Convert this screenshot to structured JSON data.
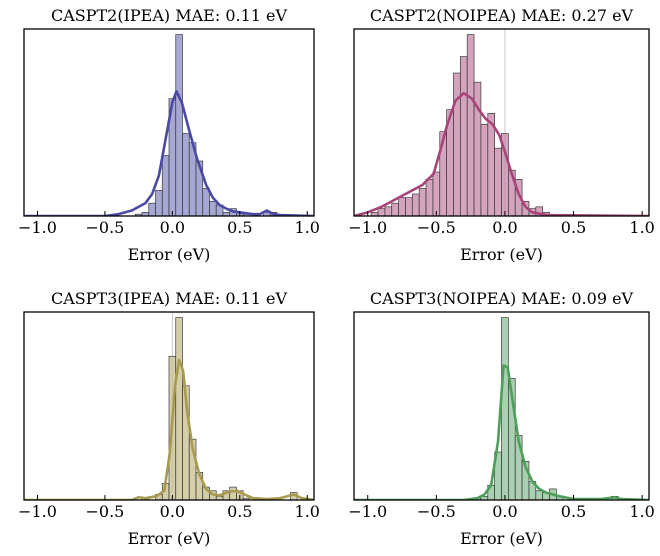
{
  "chart_data": [
    {
      "type": "histogram",
      "title": "CASPT2(IPEA) MAE: 0.11 eV",
      "xlabel": "Error (eV)",
      "xlim": [
        -1.1,
        1.05
      ],
      "xticks": [
        -1.0,
        -0.5,
        0.0,
        0.5,
        1.0
      ],
      "xtick_labels": [
        "−1.0",
        "−0.5",
        "0.0",
        "0.5",
        "1.0"
      ],
      "color": "#4a4aa6",
      "bins": [
        {
          "x": -0.25,
          "h": 0.01
        },
        {
          "x": -0.2,
          "h": 0.02
        },
        {
          "x": -0.15,
          "h": 0.07
        },
        {
          "x": -0.1,
          "h": 0.14
        },
        {
          "x": -0.05,
          "h": 0.33
        },
        {
          "x": 0.0,
          "h": 0.64
        },
        {
          "x": 0.05,
          "h": 0.99
        },
        {
          "x": 0.1,
          "h": 0.45
        },
        {
          "x": 0.15,
          "h": 0.4
        },
        {
          "x": 0.2,
          "h": 0.3
        },
        {
          "x": 0.25,
          "h": 0.15
        },
        {
          "x": 0.3,
          "h": 0.08
        },
        {
          "x": 0.35,
          "h": 0.06
        },
        {
          "x": 0.4,
          "h": 0.02
        },
        {
          "x": 0.45,
          "h": 0.04
        },
        {
          "x": 0.5,
          "h": 0.02
        },
        {
          "x": 0.55,
          "h": 0.01
        },
        {
          "x": 0.7,
          "h": 0.02
        },
        {
          "x": 0.75,
          "h": 0.02
        }
      ],
      "kde": [
        [
          -1.1,
          0
        ],
        [
          -0.5,
          0
        ],
        [
          -0.4,
          0.01
        ],
        [
          -0.3,
          0.03
        ],
        [
          -0.2,
          0.07
        ],
        [
          -0.15,
          0.12
        ],
        [
          -0.1,
          0.22
        ],
        [
          -0.05,
          0.42
        ],
        [
          0.0,
          0.62
        ],
        [
          0.03,
          0.68
        ],
        [
          0.07,
          0.62
        ],
        [
          0.12,
          0.48
        ],
        [
          0.18,
          0.32
        ],
        [
          0.25,
          0.17
        ],
        [
          0.3,
          0.1
        ],
        [
          0.35,
          0.06
        ],
        [
          0.4,
          0.04
        ],
        [
          0.45,
          0.025
        ],
        [
          0.5,
          0.02
        ],
        [
          0.55,
          0.015
        ],
        [
          0.6,
          0.01
        ],
        [
          0.65,
          0.01
        ],
        [
          0.7,
          0.03
        ],
        [
          0.75,
          0.01
        ],
        [
          0.8,
          0.005
        ],
        [
          1.05,
          0
        ]
      ],
      "zero_line": false
    },
    {
      "type": "histogram",
      "title": "CASPT2(NOIPEA) MAE: 0.27 eV",
      "xlabel": "Error (eV)",
      "xlim": [
        -1.1,
        1.05
      ],
      "xticks": [
        -1.0,
        -0.5,
        0.0,
        0.5,
        1.0
      ],
      "xtick_labels": [
        "−1.0",
        "−0.5",
        "0.0",
        "0.5",
        "1.0"
      ],
      "color": "#a8447a",
      "bins": [
        {
          "x": -0.95,
          "h": 0.02
        },
        {
          "x": -0.9,
          "h": 0.04
        },
        {
          "x": -0.85,
          "h": 0.05
        },
        {
          "x": -0.8,
          "h": 0.07
        },
        {
          "x": -0.75,
          "h": 0.1
        },
        {
          "x": -0.7,
          "h": 0.1
        },
        {
          "x": -0.65,
          "h": 0.12
        },
        {
          "x": -0.6,
          "h": 0.15
        },
        {
          "x": -0.55,
          "h": 0.2
        },
        {
          "x": -0.5,
          "h": 0.24
        },
        {
          "x": -0.45,
          "h": 0.46
        },
        {
          "x": -0.4,
          "h": 0.58
        },
        {
          "x": -0.35,
          "h": 0.78
        },
        {
          "x": -0.3,
          "h": 0.87
        },
        {
          "x": -0.25,
          "h": 0.99
        },
        {
          "x": -0.2,
          "h": 0.73
        },
        {
          "x": -0.15,
          "h": 0.5
        },
        {
          "x": -0.1,
          "h": 0.56
        },
        {
          "x": -0.05,
          "h": 0.37
        },
        {
          "x": 0.0,
          "h": 0.45
        },
        {
          "x": 0.05,
          "h": 0.25
        },
        {
          "x": 0.1,
          "h": 0.2
        },
        {
          "x": 0.15,
          "h": 0.08
        },
        {
          "x": 0.2,
          "h": 0.04
        },
        {
          "x": 0.25,
          "h": 0.05
        },
        {
          "x": 0.3,
          "h": 0.02
        }
      ],
      "kde": [
        [
          -1.1,
          0
        ],
        [
          -1.0,
          0.02
        ],
        [
          -0.9,
          0.05
        ],
        [
          -0.8,
          0.09
        ],
        [
          -0.7,
          0.13
        ],
        [
          -0.6,
          0.17
        ],
        [
          -0.52,
          0.23
        ],
        [
          -0.47,
          0.36
        ],
        [
          -0.42,
          0.5
        ],
        [
          -0.36,
          0.63
        ],
        [
          -0.3,
          0.67
        ],
        [
          -0.24,
          0.64
        ],
        [
          -0.19,
          0.58
        ],
        [
          -0.14,
          0.53
        ],
        [
          -0.09,
          0.5
        ],
        [
          -0.04,
          0.44
        ],
        [
          0.0,
          0.35
        ],
        [
          0.05,
          0.23
        ],
        [
          0.1,
          0.12
        ],
        [
          0.15,
          0.05
        ],
        [
          0.2,
          0.02
        ],
        [
          0.3,
          0.005
        ],
        [
          1.05,
          0
        ]
      ],
      "zero_line": true
    },
    {
      "type": "histogram",
      "title": "CASPT3(IPEA) MAE: 0.11 eV",
      "xlabel": "Error (eV)",
      "xlim": [
        -1.1,
        1.05
      ],
      "xticks": [
        -1.0,
        -0.5,
        0.0,
        0.5,
        1.0
      ],
      "xtick_labels": [
        "−1.0",
        "−0.5",
        "0.0",
        "0.5",
        "1.0"
      ],
      "color": "#a89a4e",
      "bins": [
        {
          "x": -0.2,
          "h": 0.01
        },
        {
          "x": -0.1,
          "h": 0.03
        },
        {
          "x": -0.05,
          "h": 0.09
        },
        {
          "x": 0.0,
          "h": 0.78
        },
        {
          "x": 0.05,
          "h": 0.99
        },
        {
          "x": 0.1,
          "h": 0.62
        },
        {
          "x": 0.15,
          "h": 0.33
        },
        {
          "x": 0.2,
          "h": 0.15
        },
        {
          "x": 0.25,
          "h": 0.07
        },
        {
          "x": 0.3,
          "h": 0.05
        },
        {
          "x": 0.35,
          "h": 0.02
        },
        {
          "x": 0.4,
          "h": 0.05
        },
        {
          "x": 0.45,
          "h": 0.07
        },
        {
          "x": 0.5,
          "h": 0.05
        },
        {
          "x": 0.55,
          "h": 0.01
        },
        {
          "x": 0.9,
          "h": 0.04
        }
      ],
      "kde": [
        [
          -1.1,
          0
        ],
        [
          -0.3,
          0
        ],
        [
          -0.25,
          0.015
        ],
        [
          -0.2,
          0.01
        ],
        [
          -0.12,
          0.02
        ],
        [
          -0.06,
          0.05
        ],
        [
          -0.02,
          0.25
        ],
        [
          0.02,
          0.62
        ],
        [
          0.05,
          0.76
        ],
        [
          0.08,
          0.7
        ],
        [
          0.11,
          0.48
        ],
        [
          0.15,
          0.28
        ],
        [
          0.2,
          0.14
        ],
        [
          0.25,
          0.06
        ],
        [
          0.3,
          0.03
        ],
        [
          0.35,
          0.025
        ],
        [
          0.42,
          0.045
        ],
        [
          0.48,
          0.05
        ],
        [
          0.55,
          0.025
        ],
        [
          0.6,
          0.01
        ],
        [
          0.7,
          0.005
        ],
        [
          0.8,
          0.01
        ],
        [
          0.9,
          0.03
        ],
        [
          0.96,
          0.01
        ],
        [
          1.05,
          0
        ]
      ],
      "zero_line": true
    },
    {
      "type": "histogram",
      "title": "CASPT3(NOIPEA) MAE: 0.09 eV",
      "xlabel": "Error (eV)",
      "xlim": [
        -1.1,
        1.05
      ],
      "xticks": [
        -1.0,
        -0.5,
        0.0,
        0.5,
        1.0
      ],
      "xtick_labels": [
        "−1.0",
        "−0.5",
        "0.0",
        "0.5",
        "1.0"
      ],
      "color": "#4e9e5c",
      "bins": [
        {
          "x": -0.2,
          "h": 0.01
        },
        {
          "x": -0.15,
          "h": 0.02
        },
        {
          "x": -0.1,
          "h": 0.08
        },
        {
          "x": -0.05,
          "h": 0.26
        },
        {
          "x": 0.0,
          "h": 0.99
        },
        {
          "x": 0.05,
          "h": 0.66
        },
        {
          "x": 0.1,
          "h": 0.35
        },
        {
          "x": 0.15,
          "h": 0.21
        },
        {
          "x": 0.2,
          "h": 0.1
        },
        {
          "x": 0.25,
          "h": 0.05
        },
        {
          "x": 0.3,
          "h": 0.04
        },
        {
          "x": 0.35,
          "h": 0.06
        },
        {
          "x": 0.4,
          "h": 0.02
        },
        {
          "x": 0.8,
          "h": 0.02
        }
      ],
      "kde": [
        [
          -1.1,
          0
        ],
        [
          -0.3,
          0
        ],
        [
          -0.2,
          0.01
        ],
        [
          -0.15,
          0.03
        ],
        [
          -0.1,
          0.08
        ],
        [
          -0.05,
          0.32
        ],
        [
          -0.01,
          0.73
        ],
        [
          0.02,
          0.72
        ],
        [
          0.06,
          0.52
        ],
        [
          0.1,
          0.32
        ],
        [
          0.15,
          0.18
        ],
        [
          0.2,
          0.1
        ],
        [
          0.25,
          0.06
        ],
        [
          0.3,
          0.04
        ],
        [
          0.35,
          0.03
        ],
        [
          0.4,
          0.02
        ],
        [
          0.5,
          0.005
        ],
        [
          0.7,
          0.005
        ],
        [
          0.8,
          0.015
        ],
        [
          0.85,
          0.005
        ],
        [
          1.05,
          0
        ]
      ],
      "zero_line": false
    }
  ]
}
